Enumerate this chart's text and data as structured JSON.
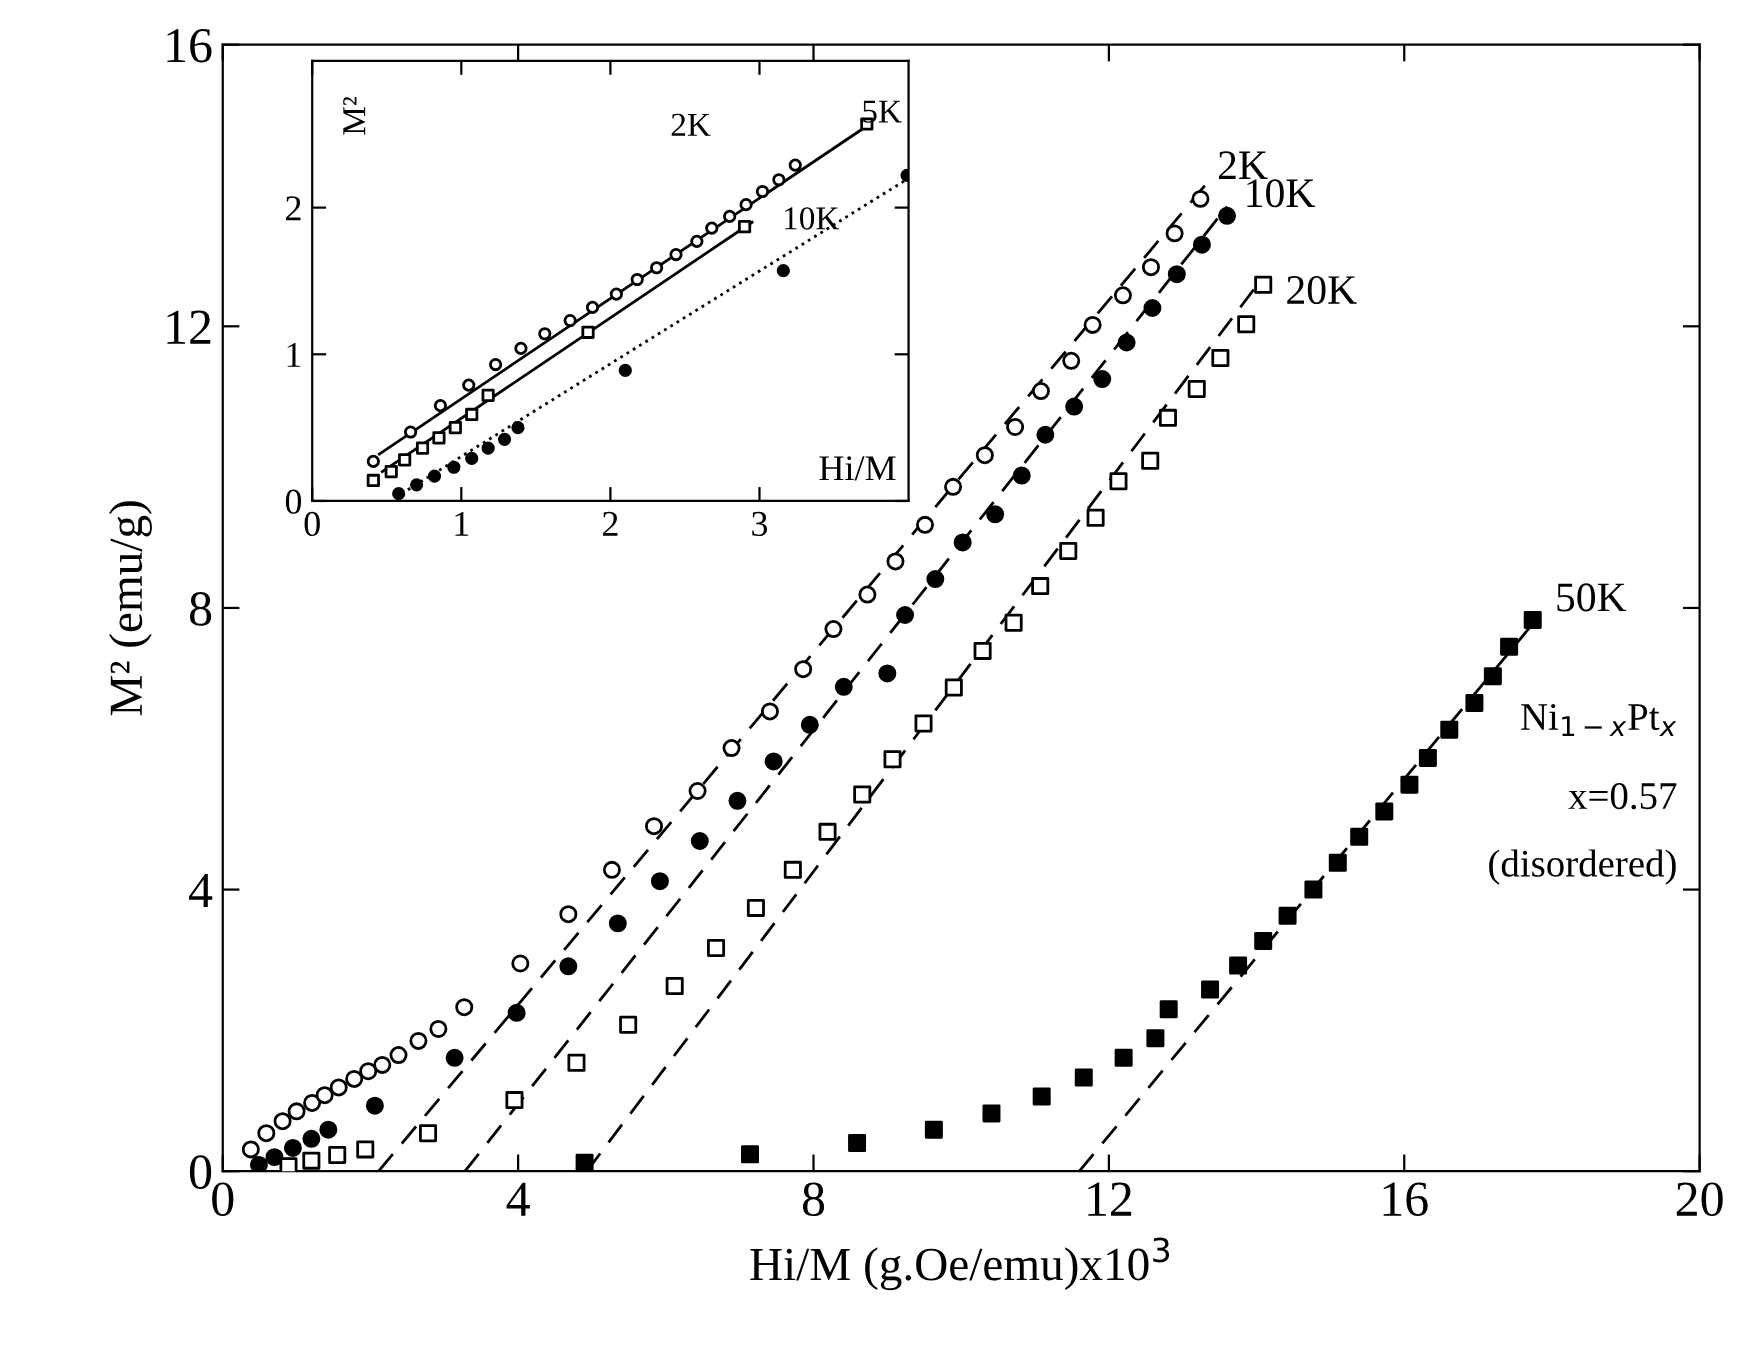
{
  "chart_data": [
    {
      "type": "scatter",
      "xlabel": "Hi/M (g.Oe/emu)x10$^{3}$",
      "ylabel": "M² (emu/g)",
      "xlim": [
        0,
        20
      ],
      "ylim": [
        0,
        16
      ],
      "xticks": [
        0,
        4,
        8,
        12,
        16,
        20
      ],
      "yticks": [
        0,
        4,
        8,
        12,
        16
      ],
      "grid": false,
      "annotations": [
        "Ni$_{1−x}$Pt$_{x}$",
        "x=0.57",
        "(disordered)"
      ],
      "series": [
        {
          "name": "2K",
          "type": "scatter",
          "marker": "circle",
          "color": "#ffffff",
          "x": [
            0.38,
            0.59,
            0.81,
            1.0,
            1.21,
            1.38,
            1.57,
            1.78,
            1.97,
            2.16,
            2.38,
            2.65,
            2.92,
            3.27,
            4.03,
            4.68,
            5.27,
            5.84,
            6.43,
            6.89,
            7.41,
            7.86,
            8.27,
            8.73,
            9.11,
            9.51,
            9.89,
            10.32,
            10.73,
            11.08,
            11.49,
            11.78,
            12.19,
            12.57,
            12.89,
            13.24
          ],
          "values": [
            0.31,
            0.54,
            0.71,
            0.85,
            0.97,
            1.08,
            1.19,
            1.31,
            1.42,
            1.51,
            1.65,
            1.85,
            2.02,
            2.33,
            2.95,
            3.65,
            4.28,
            4.9,
            5.4,
            6.01,
            6.53,
            7.13,
            7.7,
            8.19,
            8.66,
            9.18,
            9.72,
            10.17,
            10.57,
            11.08,
            11.51,
            12.02,
            12.44,
            12.84,
            13.32,
            13.81
          ]
        },
        {
          "name": "10K",
          "type": "scatter",
          "marker": "circle",
          "color": "#000000",
          "x": [
            0.49,
            0.7,
            0.95,
            1.2,
            1.43,
            2.06,
            3.14,
            3.98,
            4.68,
            5.35,
            5.92,
            6.46,
            6.97,
            7.46,
            7.95,
            8.41,
            9.0,
            9.24,
            9.65,
            10.02,
            10.46,
            10.82,
            11.14,
            11.53,
            11.91,
            12.24,
            12.59,
            12.92,
            13.26,
            13.6
          ],
          "values": [
            0.09,
            0.2,
            0.33,
            0.46,
            0.59,
            0.93,
            1.61,
            2.25,
            2.91,
            3.52,
            4.12,
            4.69,
            5.26,
            5.82,
            6.34,
            6.88,
            7.07,
            7.9,
            8.41,
            8.93,
            9.33,
            9.88,
            10.46,
            10.86,
            11.25,
            11.77,
            12.26,
            12.74,
            13.16,
            13.57
          ]
        },
        {
          "name": "20K",
          "type": "scatter",
          "marker": "square",
          "color": "#ffffff",
          "x": [
            0.89,
            1.2,
            1.55,
            1.93,
            2.78,
            3.95,
            4.79,
            5.49,
            6.12,
            6.68,
            7.22,
            7.72,
            8.19,
            8.66,
            9.07,
            9.49,
            9.9,
            10.29,
            10.71,
            11.07,
            11.45,
            11.82,
            12.13,
            12.56,
            12.8,
            13.19,
            13.51,
            13.86,
            14.09
          ],
          "values": [
            0.07,
            0.15,
            0.23,
            0.31,
            0.54,
            1.01,
            1.54,
            2.08,
            2.63,
            3.17,
            3.74,
            4.28,
            4.82,
            5.35,
            5.85,
            6.36,
            6.87,
            7.39,
            7.79,
            8.31,
            8.81,
            9.28,
            9.8,
            10.09,
            10.7,
            11.11,
            11.55,
            12.03,
            12.59
          ]
        },
        {
          "name": "50K",
          "type": "scatter",
          "marker": "square",
          "color": "#000000",
          "x": [
            4.9,
            7.14,
            8.59,
            9.63,
            10.41,
            11.09,
            11.66,
            12.2,
            12.63,
            12.81,
            13.37,
            13.75,
            14.09,
            14.42,
            14.77,
            15.1,
            15.39,
            15.73,
            16.07,
            16.32,
            16.61,
            16.95,
            17.2,
            17.42,
            17.74
          ],
          "values": [
            0.12,
            0.24,
            0.4,
            0.59,
            0.82,
            1.06,
            1.33,
            1.61,
            1.89,
            2.3,
            2.58,
            2.92,
            3.27,
            3.63,
            4.0,
            4.38,
            4.75,
            5.11,
            5.49,
            5.87,
            6.27,
            6.65,
            7.03,
            7.45,
            7.83
          ]
        },
        {
          "type": "line",
          "line_style": "dashed",
          "color": "#000000",
          "x": [
            2.11,
            13.3
          ],
          "values": [
            0,
            14.0
          ]
        },
        {
          "type": "line",
          "line_style": "dashed",
          "color": "#000000",
          "x": [
            3.28,
            13.6
          ],
          "values": [
            0,
            13.7
          ]
        },
        {
          "type": "line",
          "line_style": "dashed",
          "color": "#000000",
          "x": [
            4.93,
            14.09
          ],
          "values": [
            0,
            12.7
          ]
        },
        {
          "type": "line",
          "line_style": "dashed",
          "color": "#000000",
          "x": [
            11.6,
            17.8
          ],
          "values": [
            0,
            7.85
          ]
        }
      ]
    },
    {
      "type": "scatter",
      "xlabel": "Hi/M",
      "ylabel": "M²",
      "xlim": [
        0,
        4
      ],
      "ylim": [
        0,
        3
      ],
      "xticks": [
        0,
        1,
        2,
        3
      ],
      "yticks": [
        0,
        1,
        2
      ],
      "grid": false,
      "series": [
        {
          "name": "2K",
          "type": "scatter",
          "marker": "circle",
          "color": "#ffffff",
          "x": [
            0.41,
            0.66,
            0.86,
            1.05,
            1.23,
            1.4,
            1.56,
            1.73,
            1.88,
            2.04,
            2.18,
            2.31,
            2.44,
            2.58,
            2.68,
            2.8,
            2.91,
            3.02,
            3.13,
            3.24
          ],
          "values": [
            0.27,
            0.47,
            0.65,
            0.79,
            0.93,
            1.04,
            1.14,
            1.23,
            1.32,
            1.41,
            1.51,
            1.59,
            1.68,
            1.77,
            1.86,
            1.94,
            2.02,
            2.11,
            2.19,
            2.29
          ]
        },
        {
          "name": "5K",
          "type": "scatter",
          "marker": "square",
          "color": "#ffffff",
          "x": [
            0.41,
            0.53,
            0.62,
            0.74,
            0.85,
            0.96,
            1.07,
            1.18,
            1.85,
            2.9,
            3.72
          ],
          "values": [
            0.14,
            0.2,
            0.28,
            0.36,
            0.43,
            0.5,
            0.59,
            0.72,
            1.15,
            1.87,
            2.57
          ]
        },
        {
          "name": "10K",
          "type": "scatter",
          "marker": "circle",
          "color": "#000000",
          "x": [
            0.58,
            0.7,
            0.82,
            0.95,
            1.07,
            1.18,
            1.29,
            1.38,
            2.1,
            3.16,
            3.99
          ],
          "values": [
            0.05,
            0.11,
            0.17,
            0.23,
            0.29,
            0.36,
            0.42,
            0.5,
            0.89,
            1.57,
            2.22
          ]
        },
        {
          "type": "line",
          "line_style": "solid",
          "color": "#000000",
          "x": [
            0.45,
            3.74
          ],
          "values": [
            0.32,
            2.57
          ]
        },
        {
          "type": "line",
          "line_style": "solid",
          "color": "#000000",
          "x": [
            0.47,
            2.95
          ],
          "values": [
            0.2,
            1.9
          ]
        },
        {
          "type": "line",
          "line_style": "dotted",
          "color": "#000000",
          "x": [
            0.6,
            4.0
          ],
          "values": [
            0.05,
            2.2
          ]
        }
      ]
    }
  ]
}
